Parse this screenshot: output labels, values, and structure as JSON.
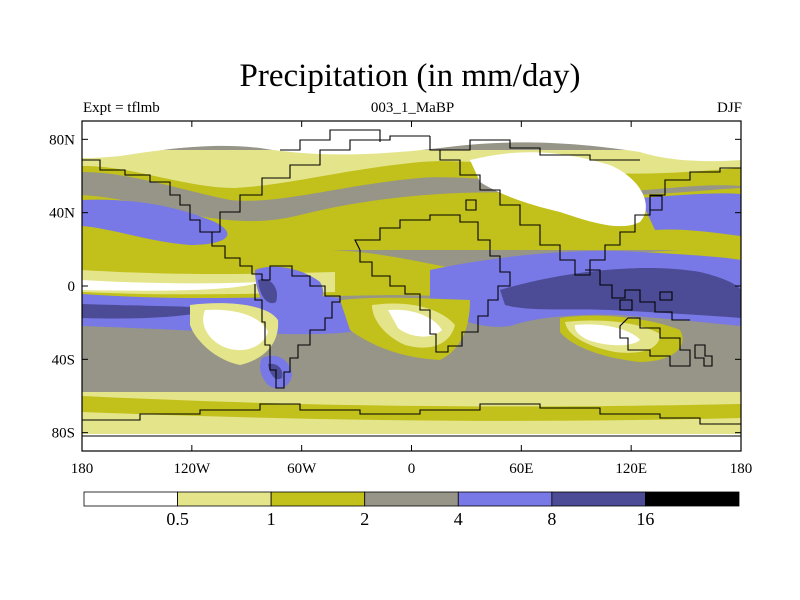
{
  "title": "Precipitation (in mm/day)",
  "left_label": "Expt = tflmb",
  "center_label": "003_1_MaBP",
  "right_label": "DJF",
  "colors": {
    "c0": "#ffffff",
    "c1": "#e4e48a",
    "c2": "#c2c01a",
    "c3": "#969587",
    "c4": "#7878e6",
    "c5": "#4b4b96",
    "c6": "#000000"
  },
  "map": {
    "x_axis": {
      "range": [
        -180,
        180
      ],
      "ticks": [
        {
          "value": -180,
          "label": "180"
        },
        {
          "value": -120,
          "label": "120W"
        },
        {
          "value": -60,
          "label": "60W"
        },
        {
          "value": 0,
          "label": "0"
        },
        {
          "value": 60,
          "label": "60E"
        },
        {
          "value": 120,
          "label": "120E"
        },
        {
          "value": 180,
          "label": "180"
        }
      ]
    },
    "y_axis": {
      "range": [
        -90,
        90
      ],
      "ticks": [
        {
          "value": 80,
          "label": "80N"
        },
        {
          "value": 40,
          "label": "40N"
        },
        {
          "value": 0,
          "label": "0"
        },
        {
          "value": -40,
          "label": "40S"
        },
        {
          "value": -80,
          "label": "80S"
        }
      ]
    }
  },
  "colorbar": {
    "boundaries": [
      "0.5",
      "1",
      "2",
      "4",
      "8",
      "16"
    ],
    "color_keys": [
      "c0",
      "c1",
      "c2",
      "c3",
      "c4",
      "c5",
      "c6"
    ]
  }
}
